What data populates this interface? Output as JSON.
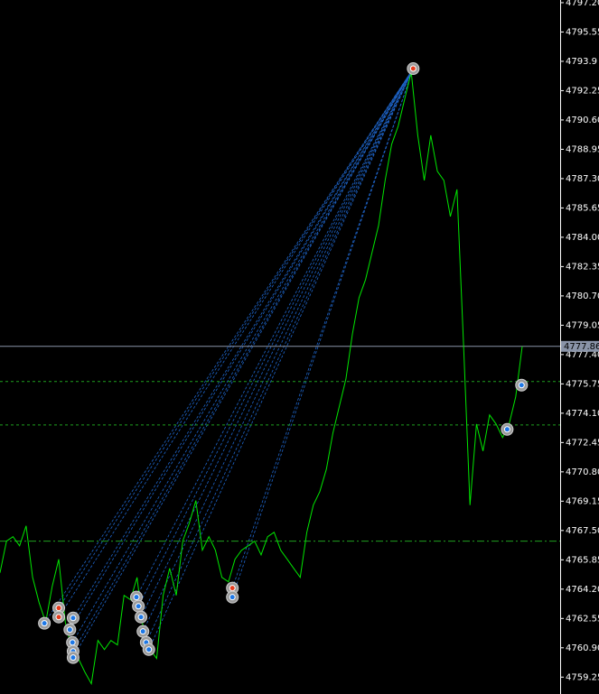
{
  "chart_data": {
    "type": "line",
    "color": "#00e600",
    "ylim": [
      4758.3,
      4797.35
    ],
    "yticks": [
      {
        "value": 4797.2,
        "label": "4797.20"
      },
      4795.55,
      4793.9,
      4792.25,
      {
        "value": 4790.6,
        "label": "4790.60"
      },
      4788.95,
      {
        "value": 4787.3,
        "label": "4787.30"
      },
      4785.65,
      {
        "value": 4784,
        "label": "4784.00"
      },
      4782.35,
      {
        "value": 4780.7,
        "label": "4780.70"
      },
      4779.05,
      {
        "value": 4777.4,
        "label": "4777.40"
      },
      4775.75,
      {
        "value": 4774.1,
        "label": "4774.10"
      },
      4772.45,
      {
        "value": 4770.8,
        "label": "4770.80"
      },
      4769.15,
      {
        "value": 4767.5,
        "label": "4767.50"
      },
      4765.85,
      {
        "value": 4764.2,
        "label": "4764.20"
      },
      4762.55,
      {
        "value": 4760.9,
        "label": "4760.90"
      },
      4759.25
    ],
    "values": [
      4765.12,
      4766.9,
      4767.15,
      4766.64,
      4767.76,
      4764.86,
      4763.44,
      4762.33,
      4764.36,
      4765.88,
      4762.33,
      4760.8,
      4760.3,
      4759.54,
      4758.88,
      4761.31,
      4760.8,
      4761.31,
      4761.06,
      4763.85,
      4763.6,
      4764.86,
      4761.82,
      4760.8,
      4760.3,
      4763.85,
      4765.37,
      4763.85,
      4766.9,
      4767.91,
      4769.18,
      4766.39,
      4767.15,
      4766.39,
      4764.86,
      4764.61,
      4765.88,
      4766.39,
      4766.64,
      4766.9,
      4766.13,
      4767.15,
      4767.4,
      4766.39,
      4765.88,
      4765.37,
      4764.86,
      4767.4,
      4768.93,
      4769.69,
      4770.96,
      4772.99,
      4774.51,
      4776.03,
      4778.57,
      4780.6,
      4781.62,
      4783.14,
      4784.66,
      4787.2,
      4789.23,
      4790.25,
      4791.77,
      4793.29,
      4789.74,
      4787.2,
      4789.74,
      4787.71,
      4787.2,
      4785.17,
      4786.69,
      4778.06,
      4768.93,
      4773.49,
      4771.97,
      4774.0,
      4773.49,
      4772.73,
      4773.49,
      4775.02,
      4777.86
    ],
    "current_price": {
      "value": 4777.86,
      "label": "4777.86",
      "color": "#8a94a8"
    },
    "levels": [
      {
        "value": 4775.88,
        "color": "#1fa01f",
        "dash": "3 3"
      },
      {
        "value": 4773.44,
        "color": "#1fa01f",
        "dash": "3 3"
      },
      {
        "value": 4766.9,
        "color": "#1fa01f",
        "dash": "8 3 2 3"
      }
    ],
    "markers": [
      {
        "x": 6.8,
        "price": 4762.28,
        "color": "#1e78e6"
      },
      {
        "x": 9.0,
        "price": 4763.14,
        "color": "#e63c1e"
      },
      {
        "x": 9.0,
        "price": 4762.63,
        "color": "#e63c1e"
      },
      {
        "x": 11.2,
        "price": 4762.58,
        "color": "#1e78e6"
      },
      {
        "x": 10.7,
        "price": 4761.92,
        "color": "#1e78e6"
      },
      {
        "x": 11.1,
        "price": 4761.2,
        "color": "#1e78e6"
      },
      {
        "x": 11.2,
        "price": 4760.7,
        "color": "#1e78e6"
      },
      {
        "x": 11.2,
        "price": 4760.35,
        "color": "#1e78e6"
      },
      {
        "x": 20.9,
        "price": 4763.75,
        "color": "#1e78e6"
      },
      {
        "x": 21.2,
        "price": 4763.24,
        "color": "#1e78e6"
      },
      {
        "x": 21.6,
        "price": 4762.63,
        "color": "#1e78e6"
      },
      {
        "x": 21.9,
        "price": 4761.82,
        "color": "#1e78e6"
      },
      {
        "x": 22.4,
        "price": 4761.2,
        "color": "#1e78e6"
      },
      {
        "x": 22.8,
        "price": 4760.8,
        "color": "#1e78e6"
      },
      {
        "x": 35.6,
        "price": 4764.26,
        "color": "#e63c1e"
      },
      {
        "x": 35.6,
        "price": 4763.75,
        "color": "#1e78e6"
      },
      {
        "x": 63.3,
        "price": 4793.49,
        "color": "#e63c1e"
      },
      {
        "x": 77.7,
        "price": 4773.19,
        "color": "#1e78e6"
      },
      {
        "x": 79.9,
        "price": 4775.68,
        "color": "#1e78e6"
      }
    ]
  }
}
